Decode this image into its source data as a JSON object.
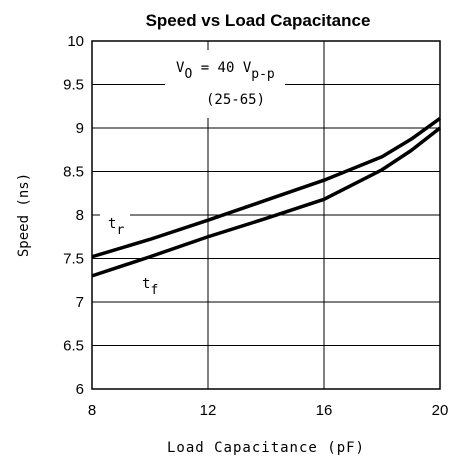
{
  "chart_data": {
    "type": "line",
    "title": "Speed vs Load Capacitance",
    "x_label": "Load Capacitance (pF)",
    "y_label": "Speed (ns)",
    "x": [
      8,
      10,
      12,
      14,
      16,
      18,
      19,
      20
    ],
    "series": [
      {
        "color": "#000000",
        "values": [
          7.52,
          7.72,
          7.94,
          8.17,
          8.4,
          8.67,
          8.87,
          9.11
        ]
      },
      {
        "color": "#000000",
        "values": [
          7.3,
          7.52,
          7.75,
          7.96,
          8.18,
          8.52,
          8.74,
          9.0
        ]
      }
    ],
    "xlim": [
      8,
      20
    ],
    "xticks": [
      8,
      12,
      16,
      20
    ],
    "ylim": [
      6,
      10
    ],
    "yticks": [
      6,
      6.5,
      7,
      7.5,
      8,
      8.5,
      9,
      9.5,
      10
    ],
    "grid": true,
    "annotations": [
      {
        "parts": [
          {
            "text": "V"
          },
          {
            "sub": "O"
          },
          {
            "text": " = 40 V"
          },
          {
            "sub": "p-p"
          }
        ]
      },
      {
        "parts": [
          {
            "text": "(25-65)"
          }
        ]
      },
      {
        "parts": [
          {
            "text": "t"
          },
          {
            "sub": "r"
          }
        ]
      },
      {
        "parts": [
          {
            "text": "t"
          },
          {
            "sub": "f"
          }
        ]
      }
    ]
  }
}
